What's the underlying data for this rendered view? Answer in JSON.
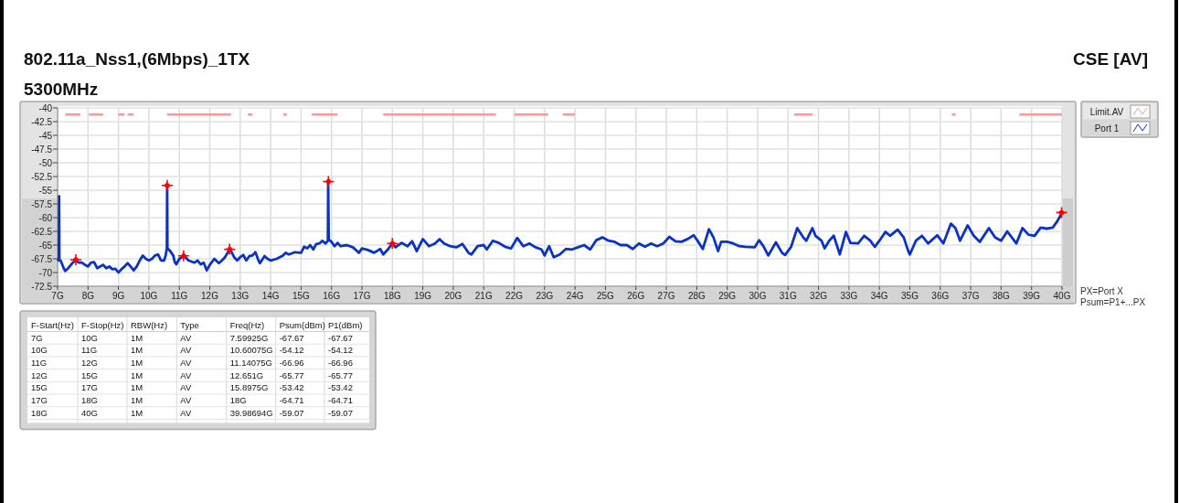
{
  "chart_data": [
    {
      "type": "line",
      "title": "802.11a_Nss1,(6Mbps)_1TX",
      "subtitle": "5300MHz",
      "annotations": [
        "CSE [AV]",
        "PX=Port X",
        "Psum=P1+...PX"
      ],
      "xlim": [
        7,
        40
      ],
      "ylim": [
        -72.5,
        -40
      ],
      "xticks": [
        {
          "value": 7,
          "label": "7G"
        },
        {
          "value": 8,
          "label": "8G"
        },
        {
          "value": 9,
          "label": "9G"
        },
        {
          "value": 10,
          "label": "10G"
        },
        {
          "value": 11,
          "label": "11G"
        },
        {
          "value": 12,
          "label": "12G"
        },
        {
          "value": 13,
          "label": "13G"
        },
        {
          "value": 14,
          "label": "14G"
        },
        {
          "value": 15,
          "label": "15G"
        },
        {
          "value": 16,
          "label": "16G"
        },
        {
          "value": 17,
          "label": "17G"
        },
        {
          "value": 18,
          "label": "18G"
        },
        {
          "value": 19,
          "label": "19G"
        },
        {
          "value": 20,
          "label": "20G"
        },
        {
          "value": 21,
          "label": "21G"
        },
        {
          "value": 22,
          "label": "22G"
        },
        {
          "value": 23,
          "label": "23G"
        },
        {
          "value": 24,
          "label": "24G"
        },
        {
          "value": 25,
          "label": "25G"
        },
        {
          "value": 26,
          "label": "26G"
        },
        {
          "value": 27,
          "label": "27G"
        },
        {
          "value": 28,
          "label": "28G"
        },
        {
          "value": 29,
          "label": "29G"
        },
        {
          "value": 30,
          "label": "30G"
        },
        {
          "value": 31,
          "label": "31G"
        },
        {
          "value": 32,
          "label": "32G"
        },
        {
          "value": 33,
          "label": "33G"
        },
        {
          "value": 34,
          "label": "34G"
        },
        {
          "value": 35,
          "label": "35G"
        },
        {
          "value": 36,
          "label": "36G"
        },
        {
          "value": 37,
          "label": "37G"
        },
        {
          "value": 38,
          "label": "38G"
        },
        {
          "value": 39,
          "label": "39G"
        },
        {
          "value": 40,
          "label": "40G"
        }
      ],
      "yticks": [
        -40,
        -42.5,
        -45,
        -47.5,
        -50,
        -52.5,
        -55,
        -57.5,
        -60,
        -62.5,
        -65,
        -67.5,
        -70,
        -72.5
      ],
      "grid": true,
      "legend": "top right",
      "series": [
        {
          "name": "Limit.AV",
          "type": "line",
          "color": "#f59a9a",
          "x": [
            7.25,
            7.75,
            7.9,
            8.03,
            8.5,
            8.75,
            9.0,
            9.2,
            9.25,
            9.3,
            9.5,
            10.0,
            10.6,
            12.7,
            13.0,
            13.25,
            13.4,
            14.0,
            14.48,
            15.0,
            15.35,
            16.2,
            17.0,
            17.7,
            21.4,
            21.7,
            22.01,
            23.12,
            23.4,
            23.6,
            24.0,
            28.0,
            31.2,
            31.8,
            34.0,
            36.44,
            37.5,
            38.6,
            40
          ],
          "values": [
            -41.2,
            -41.2,
            null,
            -41.2,
            -41.2,
            null,
            -41.2,
            -41.2,
            null,
            -41.2,
            -41.2,
            null,
            -41.2,
            -41.2,
            null,
            -41.2,
            -41.2,
            null,
            -41.2,
            null,
            -41.2,
            -41.2,
            null,
            -41.2,
            -41.2,
            null,
            -41.2,
            -41.2,
            null,
            -41.2,
            -41.2,
            null,
            -41.2,
            -41.2,
            null,
            -41.2,
            null,
            -41.2,
            -41.2
          ]
        },
        {
          "name": "Port 1",
          "type": "line",
          "color": "#0a32c8",
          "x": [
            7.0,
            7.04,
            7.05,
            7.06,
            7.1,
            7.2,
            7.25,
            7.35,
            7.5,
            7.6,
            7.7,
            7.8,
            7.9,
            8.0,
            8.1,
            8.2,
            8.3,
            8.5,
            8.6,
            8.7,
            8.8,
            8.9,
            9.0,
            9.1,
            9.2,
            9.3,
            9.4,
            9.5,
            9.6,
            9.7,
            9.8,
            9.9,
            10.0,
            10.1,
            10.2,
            10.3,
            10.4,
            10.5,
            10.55,
            10.59,
            10.6,
            10.61,
            10.7,
            10.8,
            10.85,
            10.9,
            11.0,
            11.14,
            11.2,
            11.3,
            11.5,
            11.6,
            11.7,
            11.8,
            11.9,
            12.0,
            12.15,
            12.3,
            12.4,
            12.5,
            12.65,
            12.7,
            12.8,
            12.9,
            13.0,
            13.1,
            13.2,
            13.3,
            13.4,
            13.5,
            13.6,
            13.65,
            13.8,
            13.9,
            14.0,
            14.2,
            14.4,
            14.5,
            14.6,
            14.8,
            15.0,
            15.1,
            15.2,
            15.3,
            15.4,
            15.5,
            15.6,
            15.7,
            15.8,
            15.88,
            15.89,
            15.91,
            16.0,
            16.1,
            16.2,
            16.3,
            16.5,
            16.7,
            16.9,
            17.0,
            17.2,
            17.4,
            17.6,
            17.7,
            17.85,
            18.0,
            18.1,
            18.3,
            18.5,
            18.65,
            18.8,
            19.0,
            19.2,
            19.4,
            19.55,
            19.7,
            19.9,
            20.1,
            20.3,
            20.5,
            20.6,
            20.8,
            21.0,
            21.1,
            21.3,
            21.5,
            21.7,
            21.9,
            22.1,
            22.3,
            22.5,
            22.7,
            22.9,
            23.0,
            23.15,
            23.3,
            23.5,
            23.7,
            23.9,
            24.1,
            24.3,
            24.5,
            24.7,
            24.9,
            25.1,
            25.3,
            25.5,
            25.7,
            25.9,
            26.1,
            26.3,
            26.5,
            26.7,
            26.9,
            27.1,
            27.3,
            27.5,
            27.7,
            27.9,
            28.05,
            28.2,
            28.4,
            28.55,
            28.7,
            28.8,
            29.0,
            29.2,
            29.4,
            29.6,
            29.9,
            30.05,
            30.2,
            30.35,
            30.6,
            30.8,
            30.9,
            31.1,
            31.3,
            31.5,
            31.6,
            31.8,
            31.9,
            32.1,
            32.2,
            32.35,
            32.5,
            32.7,
            32.9,
            33.05,
            33.3,
            33.5,
            33.7,
            33.85,
            34.0,
            34.2,
            34.35,
            34.6,
            34.8,
            34.95,
            35.0,
            35.2,
            35.4,
            35.6,
            35.9,
            36.1,
            36.35,
            36.5,
            36.65,
            36.9,
            37.1,
            37.3,
            37.6,
            37.8,
            38.0,
            38.2,
            38.5,
            38.7,
            38.9,
            39.1,
            39.3,
            39.5,
            39.7,
            39.85,
            39.99
          ],
          "values": [
            -67.5,
            -67.8,
            -56.1,
            -67.8,
            -67.8,
            -69.2,
            -69.7,
            -69.2,
            -68.2,
            -67.8,
            -68.2,
            -68.2,
            -68.6,
            -68.9,
            -68.2,
            -68.1,
            -69.2,
            -68.6,
            -69.2,
            -68.9,
            -69.4,
            -69.3,
            -70.0,
            -69.4,
            -68.9,
            -68.3,
            -68.9,
            -69.6,
            -68.9,
            -67.8,
            -66.9,
            -67.5,
            -67.8,
            -67.5,
            -66.9,
            -66.7,
            -67.8,
            -67.8,
            -66.9,
            -65.6,
            -54.3,
            -65.6,
            -66.1,
            -66.9,
            -68.1,
            -68.5,
            -67.5,
            -67.0,
            -67.2,
            -67.8,
            -68.2,
            -67.8,
            -68.5,
            -68.2,
            -69.6,
            -68.6,
            -67.5,
            -68.3,
            -67.8,
            -67.2,
            -65.8,
            -66.1,
            -67.2,
            -67.8,
            -67.2,
            -66.8,
            -67.8,
            -67.0,
            -66.9,
            -66.3,
            -67.8,
            -68.3,
            -67.0,
            -67.5,
            -67.8,
            -67.5,
            -66.9,
            -66.4,
            -66.7,
            -66.3,
            -66.4,
            -65.3,
            -65.6,
            -65.0,
            -65.8,
            -64.8,
            -64.7,
            -64.2,
            -64.7,
            -64.2,
            -53.6,
            -64.0,
            -64.4,
            -65.2,
            -64.6,
            -65.2,
            -65.0,
            -65.4,
            -66.4,
            -65.6,
            -65.9,
            -66.4,
            -65.7,
            -66.7,
            -65.8,
            -64.7,
            -65.4,
            -64.6,
            -65.2,
            -64.3,
            -66.1,
            -63.9,
            -65.2,
            -64.7,
            -63.9,
            -64.7,
            -65.2,
            -65.4,
            -64.8,
            -66.4,
            -66.7,
            -65.2,
            -65.0,
            -65.8,
            -64.2,
            -64.6,
            -65.3,
            -65.6,
            -63.7,
            -65.2,
            -64.7,
            -65.4,
            -65.8,
            -66.9,
            -65.2,
            -67.2,
            -66.7,
            -65.7,
            -65.8,
            -65.4,
            -65.0,
            -65.8,
            -64.1,
            -63.6,
            -64.2,
            -64.4,
            -65.0,
            -65.0,
            -65.7,
            -64.7,
            -65.3,
            -64.7,
            -65.2,
            -64.7,
            -63.5,
            -64.3,
            -64.4,
            -63.9,
            -63.2,
            -64.4,
            -65.7,
            -62.1,
            -63.6,
            -66.1,
            -64.4,
            -64.4,
            -64.7,
            -65.2,
            -65.3,
            -65.4,
            -64.1,
            -65.3,
            -66.9,
            -64.5,
            -66.4,
            -66.8,
            -65.3,
            -61.9,
            -63.6,
            -64.2,
            -61.9,
            -63.3,
            -64.2,
            -65.6,
            -64.2,
            -63.3,
            -66.7,
            -62.6,
            -64.6,
            -64.7,
            -63.3,
            -64.2,
            -65.3,
            -64.2,
            -62.6,
            -63.3,
            -62.2,
            -63.6,
            -66.1,
            -66.7,
            -64.2,
            -63.3,
            -64.7,
            -63.2,
            -64.7,
            -61.1,
            -61.9,
            -64.2,
            -61.4,
            -63.3,
            -64.4,
            -61.9,
            -63.6,
            -64.2,
            -62.5,
            -64.7,
            -61.9,
            -63.1,
            -63.3,
            -61.8,
            -62.0,
            -61.8,
            -60.6,
            -59.2
          ]
        },
        {
          "type": "scatter",
          "color": "#ff0000",
          "marker": "cross",
          "x": [
            7.59925,
            10.60075,
            11.14075,
            12.651,
            15.8975,
            18,
            39.98694
          ],
          "values": [
            -67.67,
            -54.12,
            -66.96,
            -65.77,
            -53.42,
            -64.71,
            -59.07
          ]
        }
      ]
    },
    {
      "type": "other",
      "categories": [
        "F-Start(Hz)",
        "F-Stop(Hz)",
        "RBW(Hz)",
        "Type",
        "Freq(Hz)",
        "Psum(dBm)",
        "P1(dBm)"
      ],
      "cell_labels": [
        [
          "7G",
          "10G",
          "1M",
          "AV",
          "7.59925G",
          "-67.67",
          "-67.67"
        ],
        [
          "10G",
          "11G",
          "1M",
          "AV",
          "10.60075G",
          "-54.12",
          "-54.12"
        ],
        [
          "11G",
          "12G",
          "1M",
          "AV",
          "11.14075G",
          "-66.96",
          "-66.96"
        ],
        [
          "12G",
          "15G",
          "1M",
          "AV",
          "12.651G",
          "-65.77",
          "-65.77"
        ],
        [
          "15G",
          "17G",
          "1M",
          "AV",
          "15.8975G",
          "-53.42",
          "-53.42"
        ],
        [
          "17G",
          "18G",
          "1M",
          "AV",
          "18G",
          "-64.71",
          "-64.71"
        ],
        [
          "18G",
          "40G",
          "1M",
          "AV",
          "39.98694G",
          "-59.07",
          "-59.07"
        ]
      ]
    }
  ]
}
